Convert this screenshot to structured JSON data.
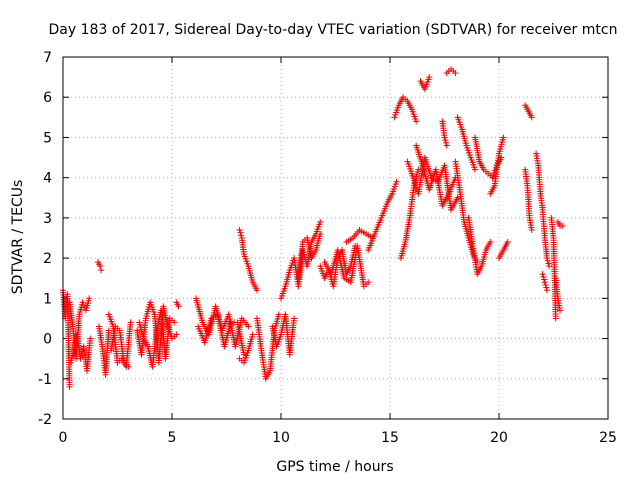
{
  "chart_data": {
    "type": "scatter",
    "title": "Day 183 of 2017, Sidereal Day-to-day VTEC variation (SDTVAR) for receiver mtcn",
    "xlabel": "GPS time / hours",
    "ylabel": "SDTVAR / TECUs",
    "xlim": [
      0,
      25
    ],
    "ylim": [
      -2,
      7
    ],
    "xticks": [
      "0",
      "5",
      "10",
      "15",
      "20",
      "25"
    ],
    "yticks": [
      "-2",
      "-1",
      "0",
      "1",
      "2",
      "3",
      "4",
      "5",
      "6",
      "7"
    ],
    "grid": true,
    "marker": "+",
    "series_color": "#ff0000",
    "segments": [
      {
        "x": [
          0.0,
          0.1,
          0.2,
          0.3
        ],
        "y": [
          1.2,
          0.5,
          1.1,
          -1.2
        ]
      },
      {
        "x": [
          0.3,
          0.45,
          0.6,
          0.75,
          0.9,
          1.05,
          1.2
        ],
        "y": [
          0.9,
          0.3,
          -0.5,
          0.6,
          0.9,
          0.7,
          1.0
        ]
      },
      {
        "x": [
          0.35,
          0.5,
          0.65,
          0.8,
          0.95,
          1.1,
          1.25
        ],
        "y": [
          -0.6,
          -0.3,
          0.1,
          -0.5,
          -0.2,
          -0.8,
          0.0
        ]
      },
      {
        "x": [
          1.6,
          1.7,
          1.75
        ],
        "y": [
          1.9,
          1.8,
          1.7
        ]
      },
      {
        "x": [
          1.65,
          1.8,
          1.95,
          2.1
        ],
        "y": [
          0.3,
          -0.2,
          -0.9,
          0.2
        ]
      },
      {
        "x": [
          2.1,
          2.3,
          2.5,
          2.7,
          2.9,
          3.1
        ],
        "y": [
          0.6,
          0.3,
          -0.6,
          -0.5,
          -0.7,
          0.4
        ]
      },
      {
        "x": [
          2.2,
          2.4,
          2.6,
          2.8,
          3.0
        ],
        "y": [
          -0.3,
          0.3,
          0.2,
          -0.6,
          -0.7
        ]
      },
      {
        "x": [
          3.4,
          3.6,
          3.8,
          4.0,
          4.2,
          4.4,
          4.6,
          4.8,
          5.0,
          5.2
        ],
        "y": [
          0.2,
          -0.4,
          0.5,
          0.9,
          0.6,
          -0.6,
          0.8,
          0.3,
          0.0,
          0.1
        ]
      },
      {
        "x": [
          3.5,
          3.7,
          3.9,
          4.1,
          4.3,
          4.5,
          4.7,
          4.9,
          5.1
        ],
        "y": [
          0.4,
          0.0,
          -0.2,
          -0.7,
          0.2,
          0.7,
          -0.5,
          0.5,
          0.4
        ]
      },
      {
        "x": [
          5.2,
          5.3
        ],
        "y": [
          0.9,
          0.8
        ]
      },
      {
        "x": [
          6.1,
          6.4,
          6.7,
          7.0,
          7.3,
          7.6,
          7.9,
          8.2,
          8.5
        ],
        "y": [
          1.0,
          0.4,
          0.1,
          0.8,
          0.2,
          0.6,
          -0.2,
          0.5,
          0.3
        ]
      },
      {
        "x": [
          6.2,
          6.5,
          6.8,
          7.1,
          7.4,
          7.7,
          8.0,
          8.3
        ],
        "y": [
          0.3,
          -0.1,
          0.5,
          0.6,
          -0.2,
          0.4,
          0.4,
          -0.4
        ]
      },
      {
        "x": [
          8.1,
          8.2,
          8.3,
          8.5,
          8.7,
          8.9
        ],
        "y": [
          2.7,
          2.5,
          2.1,
          1.8,
          1.4,
          1.2
        ]
      },
      {
        "x": [
          8.1,
          8.3,
          8.5,
          8.7
        ],
        "y": [
          -0.5,
          -0.6,
          -0.3,
          0.1
        ]
      },
      {
        "x": [
          8.9,
          9.1,
          9.3,
          9.5,
          9.7,
          9.9
        ],
        "y": [
          0.5,
          -0.3,
          -1.0,
          -0.8,
          0.2,
          0.6
        ]
      },
      {
        "x": [
          9.6,
          9.8,
          10.0,
          10.2,
          10.4,
          10.6
        ],
        "y": [
          0.3,
          -0.2,
          0.1,
          0.6,
          -0.4,
          0.5
        ]
      },
      {
        "x": [
          10.0,
          10.2,
          10.4,
          10.6,
          10.8,
          11.0,
          11.2,
          11.4,
          11.6,
          11.8
        ],
        "y": [
          1.0,
          1.3,
          1.7,
          2.0,
          1.3,
          2.2,
          1.8,
          2.4,
          2.6,
          2.9
        ]
      },
      {
        "x": [
          10.8,
          11.0,
          11.2,
          11.4,
          11.6,
          11.8
        ],
        "y": [
          1.5,
          2.4,
          2.5,
          2.0,
          2.2,
          2.6
        ]
      },
      {
        "x": [
          11.8,
          12.0,
          12.2,
          12.4,
          12.6,
          12.8,
          13.0,
          13.2,
          13.4
        ],
        "y": [
          1.8,
          1.5,
          1.7,
          1.3,
          2.0,
          2.2,
          1.6,
          1.8,
          2.3
        ]
      },
      {
        "x": [
          12.0,
          12.3,
          12.6,
          12.9,
          13.2,
          13.5,
          13.8,
          14.0
        ],
        "y": [
          1.9,
          1.6,
          2.2,
          1.5,
          1.4,
          2.3,
          1.3,
          1.4
        ]
      },
      {
        "x": [
          13.0,
          13.3,
          13.6,
          13.9,
          14.2
        ],
        "y": [
          2.4,
          2.5,
          2.7,
          2.6,
          2.5
        ]
      },
      {
        "x": [
          14.0,
          14.3,
          14.6,
          14.9,
          15.1,
          15.3
        ],
        "y": [
          2.2,
          2.6,
          3.0,
          3.4,
          3.6,
          3.9
        ]
      },
      {
        "x": [
          15.2,
          15.4,
          15.6,
          15.8,
          16.0,
          16.2
        ],
        "y": [
          5.5,
          5.8,
          6.0,
          5.9,
          5.7,
          5.4
        ]
      },
      {
        "x": [
          15.5,
          15.7,
          15.9,
          16.1,
          16.3
        ],
        "y": [
          2.0,
          2.4,
          3.0,
          3.8,
          4.2
        ]
      },
      {
        "x": [
          15.8,
          16.0,
          16.3,
          16.6,
          16.9,
          17.2,
          17.5,
          17.8,
          18.1
        ],
        "y": [
          4.4,
          4.1,
          3.6,
          4.5,
          4.0,
          3.9,
          4.3,
          3.2,
          3.5
        ]
      },
      {
        "x": [
          16.2,
          16.5,
          16.8,
          17.1,
          17.4,
          17.7,
          18.0
        ],
        "y": [
          4.8,
          4.3,
          3.7,
          4.2,
          3.3,
          3.6,
          4.0
        ]
      },
      {
        "x": [
          16.4,
          16.6,
          16.8
        ],
        "y": [
          6.4,
          6.2,
          6.5
        ]
      },
      {
        "x": [
          17.4,
          17.5,
          17.6
        ],
        "y": [
          5.4,
          5.0,
          4.8
        ]
      },
      {
        "x": [
          17.6,
          17.8,
          18.0
        ],
        "y": [
          6.6,
          6.7,
          6.6
        ]
      },
      {
        "x": [
          18.0,
          18.2,
          18.4,
          18.6,
          18.8,
          19.0
        ],
        "y": [
          4.4,
          3.7,
          2.9,
          2.5,
          2.1,
          1.9
        ]
      },
      {
        "x": [
          18.1,
          18.3,
          18.5,
          18.7,
          18.9
        ],
        "y": [
          5.5,
          5.2,
          4.8,
          4.5,
          4.2
        ]
      },
      {
        "x": [
          18.6,
          18.8,
          19.0,
          19.2,
          19.4,
          19.6
        ],
        "y": [
          3.0,
          2.3,
          1.6,
          1.8,
          2.2,
          2.4
        ]
      },
      {
        "x": [
          18.9,
          19.1,
          19.3,
          19.5,
          19.7,
          19.9,
          20.1
        ],
        "y": [
          5.0,
          4.4,
          4.2,
          4.1,
          4.0,
          4.3,
          4.5
        ]
      },
      {
        "x": [
          19.6,
          19.8,
          20.0,
          20.2
        ],
        "y": [
          3.6,
          3.8,
          4.6,
          5.0
        ]
      },
      {
        "x": [
          20.0,
          20.2,
          20.4
        ],
        "y": [
          2.0,
          2.2,
          2.4
        ]
      },
      {
        "x": [
          21.2,
          21.3,
          21.4,
          21.5
        ],
        "y": [
          5.8,
          5.7,
          5.6,
          5.5
        ]
      },
      {
        "x": [
          21.2,
          21.3,
          21.4,
          21.5
        ],
        "y": [
          4.2,
          3.8,
          3.0,
          2.7
        ]
      },
      {
        "x": [
          21.7,
          21.8,
          21.9,
          22.0,
          22.1,
          22.2,
          22.3
        ],
        "y": [
          4.6,
          4.3,
          3.6,
          3.2,
          2.5,
          2.0,
          1.8
        ]
      },
      {
        "x": [
          22.0,
          22.1,
          22.2
        ],
        "y": [
          1.6,
          1.4,
          1.2
        ]
      },
      {
        "x": [
          22.4,
          22.5,
          22.6
        ],
        "y": [
          3.0,
          2.5,
          0.5
        ]
      },
      {
        "x": [
          22.7,
          22.8,
          22.9
        ],
        "y": [
          2.9,
          2.8,
          2.8
        ]
      },
      {
        "x": [
          22.6,
          22.7,
          22.8
        ],
        "y": [
          1.5,
          1.0,
          0.7
        ]
      }
    ]
  }
}
